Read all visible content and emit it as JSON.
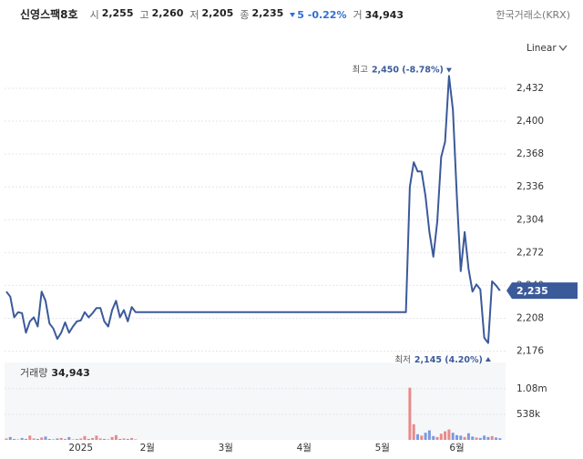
{
  "header": {
    "name": "신영스팩8호",
    "quotes": [
      {
        "label": "시",
        "value": "2,255"
      },
      {
        "label": "고",
        "value": "2,260"
      },
      {
        "label": "저",
        "value": "2,205"
      },
      {
        "label": "종",
        "value": "2,235"
      }
    ],
    "change": "5",
    "change_pct": "-0.22%",
    "volume_label": "거",
    "volume": "34,943",
    "exchange": "한국거래소(KRX)",
    "scale_button": "Linear"
  },
  "chart_data": [
    {
      "type": "line",
      "color": "#3b5a9a",
      "categories": [
        null,
        null,
        null,
        null,
        null,
        null,
        null,
        null,
        null,
        null,
        null,
        null,
        null,
        null,
        null,
        null,
        null,
        null,
        null,
        "2025",
        null,
        null,
        null,
        null,
        null,
        null,
        null,
        null,
        null,
        null,
        null,
        null,
        null,
        null,
        null,
        null,
        "2월",
        null,
        null,
        null,
        null,
        null,
        null,
        null,
        null,
        null,
        null,
        null,
        null,
        null,
        null,
        null,
        null,
        null,
        null,
        null,
        "3월",
        null,
        null,
        null,
        null,
        null,
        null,
        null,
        null,
        null,
        null,
        null,
        null,
        null,
        null,
        null,
        null,
        null,
        null,
        null,
        "4월",
        null,
        null,
        null,
        null,
        null,
        null,
        null,
        null,
        null,
        null,
        null,
        null,
        null,
        null,
        null,
        null,
        null,
        null,
        null,
        "5월",
        null,
        null,
        null,
        null,
        null,
        null,
        null,
        null,
        null,
        null,
        null,
        null,
        null,
        null,
        null,
        null,
        null,
        null,
        "6월",
        null,
        null,
        null,
        null,
        null,
        null,
        null,
        null,
        null,
        null,
        null
      ],
      "values": [
        2234,
        2229,
        2209,
        2214,
        2213,
        2194,
        2205,
        2209,
        2200,
        2234,
        2225,
        2203,
        2198,
        2188,
        2194,
        2204,
        2194,
        2200,
        2205,
        2206,
        2214,
        2209,
        2213,
        2218,
        2218,
        2205,
        2200,
        2216,
        2225,
        2209,
        2216,
        2205,
        2219,
        2214,
        2214,
        2214,
        2214,
        2214,
        2214,
        2214,
        2214,
        2214,
        2214,
        2214,
        2214,
        2214,
        2214,
        2214,
        2214,
        2214,
        2214,
        2214,
        2214,
        2214,
        2214,
        2214,
        2214,
        2214,
        2214,
        2214,
        2214,
        2214,
        2214,
        2214,
        2214,
        2214,
        2214,
        2214,
        2214,
        2214,
        2214,
        2214,
        2214,
        2214,
        2214,
        2214,
        2214,
        2214,
        2214,
        2214,
        2214,
        2214,
        2214,
        2214,
        2214,
        2214,
        2214,
        2214,
        2214,
        2214,
        2214,
        2214,
        2214,
        2214,
        2214,
        2214,
        2214,
        2214,
        2214,
        2214,
        2214,
        2214,
        2214,
        2336,
        2360,
        2351,
        2351,
        2327,
        2292,
        2268,
        2302,
        2365,
        2380,
        2444,
        2411,
        2327,
        2254,
        2292,
        2256,
        2234,
        2241,
        2236,
        2189,
        2184,
        2244,
        2240,
        2235
      ],
      "ylim": [
        2165,
        2463
      ],
      "yticks": [
        {
          "value": 2176,
          "label": "2,176"
        },
        {
          "value": 2208,
          "label": "2,208"
        },
        {
          "value": 2240,
          "label": "2,240"
        },
        {
          "value": 2272,
          "label": "2,272"
        },
        {
          "value": 2304,
          "label": "2,304"
        },
        {
          "value": 2336,
          "label": "2,336"
        },
        {
          "value": 2368,
          "label": "2,368"
        },
        {
          "value": 2400,
          "label": "2,400"
        },
        {
          "value": 2432,
          "label": "2,432"
        }
      ],
      "grid": true,
      "price_label": {
        "value": 2235,
        "label": "2,235"
      },
      "annotations": [
        {
          "label": "최고",
          "value": 2450,
          "text": "2,450 (-8.78%)"
        },
        {
          "label": "최저",
          "value": 2145,
          "text": "2,145 (4.20%)"
        }
      ]
    },
    {
      "type": "bar",
      "title": "거래량",
      "title_value": "34,943",
      "up_color": "#e88a8a",
      "down_color": "#7b9be0",
      "values": [
        30000,
        60000,
        20000,
        10000,
        40000,
        20000,
        90000,
        30000,
        20000,
        50000,
        70000,
        20000,
        10000,
        30000,
        40000,
        20000,
        60000,
        10000,
        20000,
        30000,
        80000,
        20000,
        40000,
        90000,
        30000,
        20000,
        10000,
        60000,
        100000,
        20000,
        30000,
        20000,
        40000,
        10000,
        0,
        0,
        0,
        0,
        0,
        0,
        0,
        0,
        0,
        0,
        0,
        0,
        0,
        0,
        0,
        0,
        0,
        0,
        0,
        0,
        0,
        0,
        0,
        0,
        0,
        0,
        0,
        0,
        0,
        0,
        0,
        0,
        0,
        0,
        0,
        0,
        0,
        0,
        0,
        0,
        0,
        0,
        0,
        0,
        0,
        0,
        0,
        0,
        0,
        0,
        0,
        0,
        0,
        0,
        0,
        0,
        0,
        0,
        0,
        0,
        0,
        0,
        0,
        0,
        0,
        0,
        0,
        0,
        0,
        1100000,
        330000,
        120000,
        90000,
        150000,
        200000,
        80000,
        60000,
        130000,
        180000,
        220000,
        150000,
        100000,
        90000,
        60000,
        140000,
        70000,
        50000,
        40000,
        90000,
        60000,
        80000,
        50000,
        34943
      ],
      "ylim": [
        0,
        1633000
      ],
      "yticks": [
        {
          "value": 538000,
          "label": "538k"
        },
        {
          "value": 1080000,
          "label": "1.08m"
        }
      ]
    }
  ]
}
